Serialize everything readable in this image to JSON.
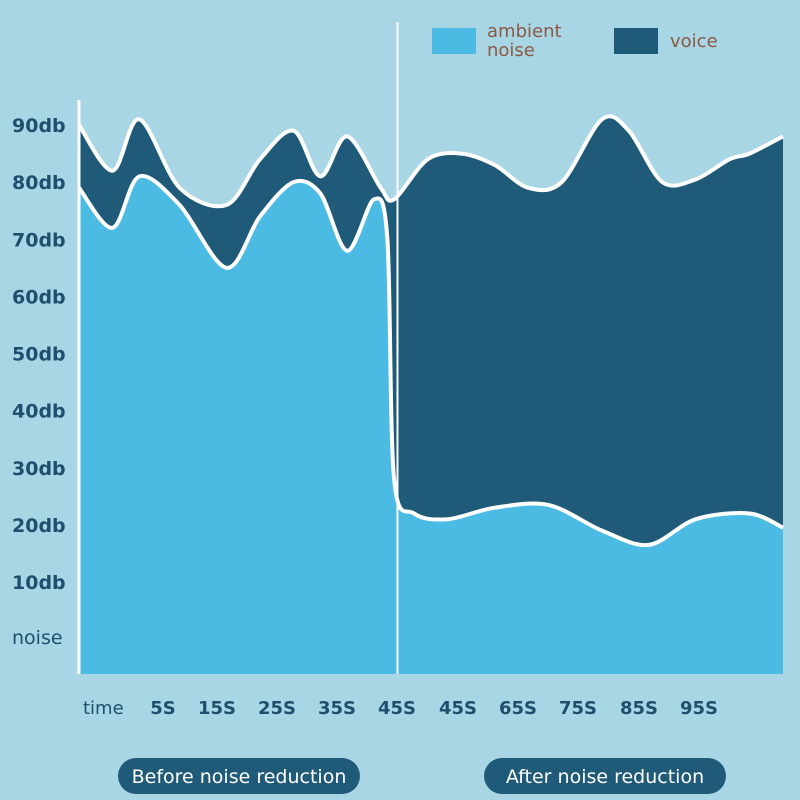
{
  "chart_data": {
    "type": "area",
    "title": "",
    "xlabel": "time",
    "ylabel": "",
    "y_ticks": [
      "noise",
      "10db",
      "20db",
      "30db",
      "40db",
      "50db",
      "60db",
      "70db",
      "80db",
      "90db"
    ],
    "x_ticks": [
      "5S",
      "15S",
      "25S",
      "35S",
      "45S",
      "45S",
      "65S",
      "75S",
      "85S",
      "95S"
    ],
    "ylim": [
      0,
      90
    ],
    "grid": false,
    "legend_position": "top-right",
    "colors": {
      "ambient": "#4bbbe3",
      "voice": "#1f5a78",
      "outline": "#ffffff",
      "pill": "#1f5a78"
    },
    "series": [
      {
        "name": "ambient noise",
        "x": [
          0,
          5,
          9,
          15,
          22,
          27,
          32,
          36,
          40,
          44,
          46,
          47,
          50,
          55,
          62,
          70,
          78,
          85,
          92,
          100,
          105
        ],
        "values": [
          79,
          72,
          81,
          76,
          65,
          74,
          80,
          78,
          68,
          77,
          70,
          28,
          22,
          21,
          23,
          23.5,
          19,
          16.5,
          21,
          22,
          19.5
        ]
      },
      {
        "name": "voice",
        "x": [
          0,
          5,
          9,
          15,
          22,
          27,
          32,
          36,
          40,
          45,
          47,
          52,
          57,
          62,
          67,
          72,
          78,
          82,
          87,
          92,
          97,
          100,
          105
        ],
        "values": [
          90,
          82,
          91,
          79,
          76,
          84,
          89,
          81,
          88,
          79,
          77,
          84,
          85,
          83,
          79,
          80,
          91,
          89,
          80,
          80.5,
          84,
          85,
          88
        ]
      }
    ]
  },
  "legend": {
    "ambient_label_line1": "ambient",
    "ambient_label_line2": "noise",
    "voice_label": "voice"
  },
  "sections": {
    "before_label": "Before noise reduction",
    "after_label": "After noise reduction"
  }
}
